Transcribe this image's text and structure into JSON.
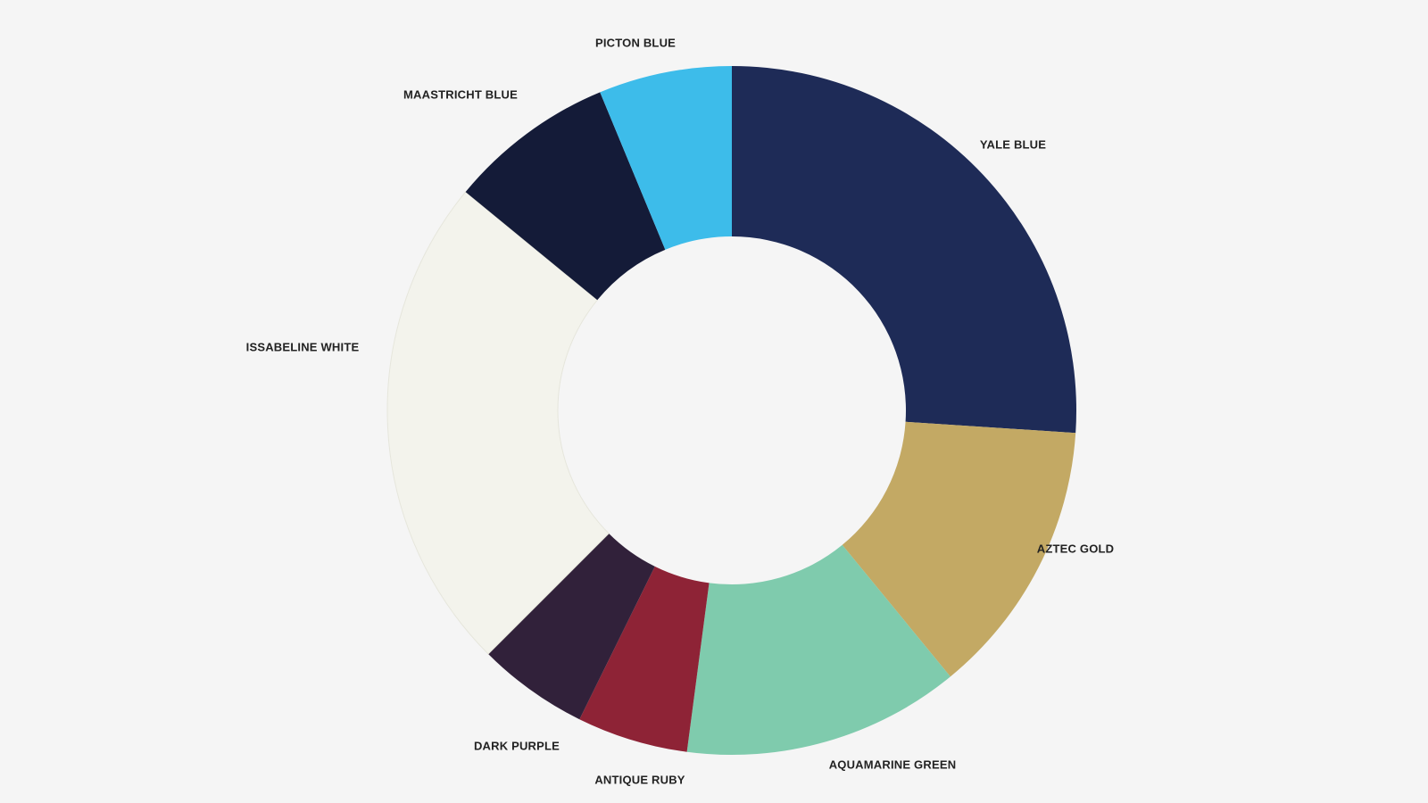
{
  "chart_data": {
    "type": "pie",
    "variant": "donut",
    "title": "",
    "slices": [
      {
        "label": "YALE BLUE",
        "value": 25,
        "color": "#1e2b57"
      },
      {
        "label": "AZTEC GOLD",
        "value": 12.5,
        "color": "#c3a964"
      },
      {
        "label": "AQUAMARINE GREEN",
        "value": 12.5,
        "color": "#7fcbad"
      },
      {
        "label": "ANTIQUE RUBY",
        "value": 5,
        "color": "#8e2336"
      },
      {
        "label": "DARK PURPLE",
        "value": 5,
        "color": "#31213a"
      },
      {
        "label": "ISSABELINE WHITE",
        "value": 22.5,
        "color": "#f3f3ec"
      },
      {
        "label": "MAASTRICHT BLUE",
        "value": 7.5,
        "color": "#141b38"
      },
      {
        "label": "PICTON BLUE",
        "value": 6,
        "color": "#3dbcea"
      }
    ],
    "start": "12 o'clock",
    "direction": "clockwise",
    "legend": "labels beside slices",
    "background_color": "#f5f5f5"
  }
}
